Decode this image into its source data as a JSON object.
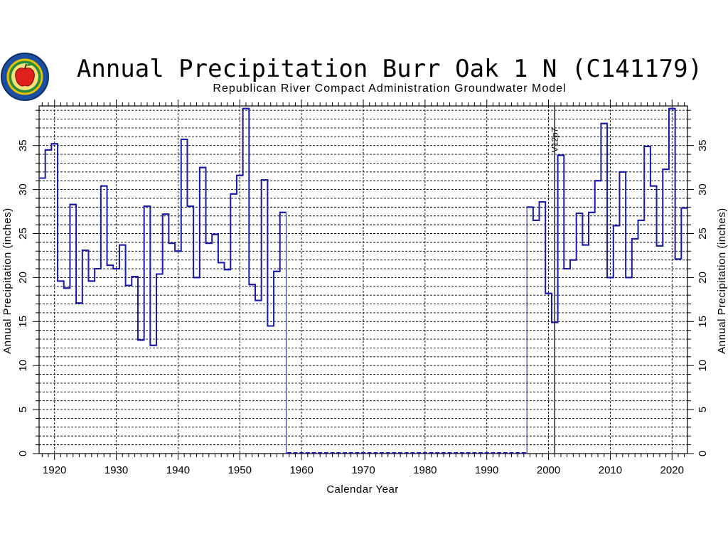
{
  "chart_data": {
    "type": "line",
    "step": true,
    "title": "Annual Precipitation Burr Oak 1 N (C141179)",
    "subtitle": "Republican River Compact Administration Groundwater Model",
    "xlabel": "Calendar Year",
    "ylabel": "Annual Precipitation (inches)",
    "ylabel_right": "Annual Precipitation (inches)",
    "xlim": [
      1917.5,
      2022.5
    ],
    "ylim": [
      0,
      39.5
    ],
    "x_ticks": [
      1920,
      1930,
      1940,
      1950,
      1960,
      1970,
      1980,
      1990,
      2000,
      2010,
      2020
    ],
    "y_ticks": [
      0,
      5,
      10,
      15,
      20,
      25,
      30,
      35
    ],
    "y_gridline_step": 1,
    "grid": true,
    "line_color": "#1a1aa8",
    "vline": {
      "x": 2001,
      "label": "V12p7"
    },
    "series": [
      {
        "segments": [
          {
            "x": [
              1918,
              1919,
              1920,
              1921,
              1922,
              1923,
              1924,
              1925,
              1926,
              1927,
              1928,
              1929,
              1930,
              1931,
              1932,
              1933,
              1934,
              1935,
              1936,
              1937,
              1938,
              1939,
              1940,
              1941,
              1942,
              1943,
              1944,
              1945,
              1946,
              1947,
              1948,
              1949,
              1950,
              1951,
              1952,
              1953,
              1954,
              1955,
              1956,
              1957
            ],
            "y": [
              31.3,
              34.5,
              35.2,
              19.6,
              18.8,
              28.3,
              17.1,
              23.1,
              19.6,
              21.0,
              30.4,
              21.4,
              21.0,
              23.7,
              19.1,
              20.1,
              12.9,
              28.1,
              12.3,
              20.4,
              27.2,
              23.9,
              23.0,
              35.7,
              28.1,
              20.0,
              32.5,
              23.9,
              24.9,
              21.7,
              20.9,
              29.5,
              31.6,
              39.2,
              19.2,
              17.4,
              31.1,
              14.5,
              20.7,
              27.4
            ]
          },
          {
            "x": [
              1997,
              1998,
              1999,
              2000,
              2001,
              2002,
              2003,
              2004,
              2005,
              2006,
              2007,
              2008,
              2009,
              2010,
              2011,
              2012,
              2013,
              2014,
              2015,
              2016,
              2017,
              2018,
              2019,
              2020,
              2021
            ],
            "y": [
              28.0,
              26.5,
              28.6,
              18.2,
              14.9,
              33.9,
              21.0,
              22.0,
              27.3,
              23.7,
              27.4,
              31.0,
              37.5,
              20.0,
              25.9,
              32.0,
              20.0,
              24.4,
              26.5,
              34.9,
              30.4,
              23.6,
              32.3,
              39.2,
              22.1
            ]
          },
          {
            "x": [
              2022
            ],
            "y": [
              27.9
            ]
          }
        ],
        "zero_marks": [
          {
            "from": 1958,
            "to": 1997
          }
        ]
      }
    ]
  },
  "logo": {
    "name": "rrca-apple-seal"
  }
}
